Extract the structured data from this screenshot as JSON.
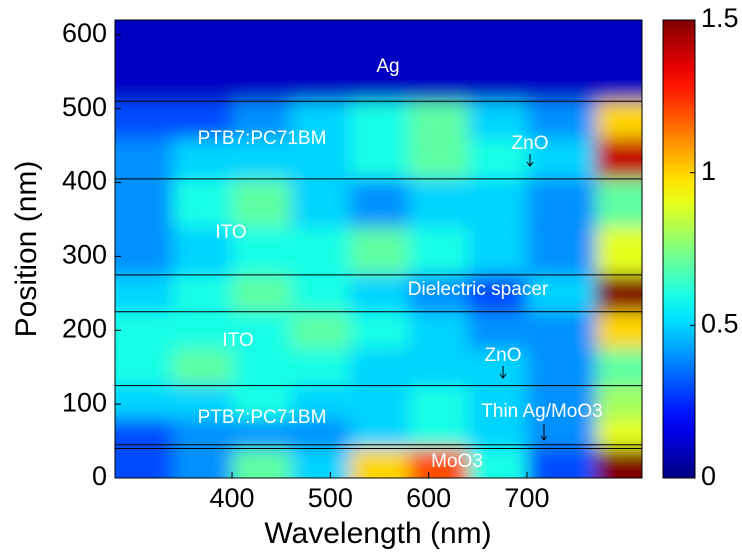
{
  "chart_data": {
    "type": "heatmap",
    "xlabel": "Wavelength (nm)",
    "ylabel": "Position (nm)",
    "x": [
      281,
      340,
      400,
      460,
      520,
      580,
      640,
      700,
      770,
      817
    ],
    "y": [
      0,
      40,
      80,
      125,
      175,
      225,
      275,
      340,
      405,
      460,
      510,
      620
    ],
    "z": [
      [
        0.3,
        0.4,
        0.7,
        0.5,
        1.0,
        1.2,
        0.6,
        0.3,
        1.5
      ],
      [
        0.3,
        0.4,
        0.4,
        0.4,
        0.5,
        0.6,
        0.5,
        0.4,
        0.9
      ],
      [
        0.5,
        0.5,
        0.6,
        0.5,
        0.5,
        0.6,
        0.5,
        0.4,
        0.8
      ],
      [
        0.6,
        0.7,
        0.6,
        0.6,
        0.5,
        0.5,
        0.5,
        0.4,
        0.7
      ],
      [
        0.6,
        0.6,
        0.6,
        0.7,
        0.6,
        0.5,
        0.4,
        0.4,
        1.0
      ],
      [
        0.5,
        0.6,
        0.7,
        0.6,
        0.5,
        0.4,
        0.3,
        0.5,
        1.5
      ],
      [
        0.4,
        0.5,
        0.6,
        0.6,
        0.7,
        0.6,
        0.5,
        0.4,
        0.9
      ],
      [
        0.4,
        0.6,
        0.7,
        0.5,
        0.4,
        0.5,
        0.5,
        0.4,
        0.7
      ],
      [
        0.4,
        0.5,
        0.5,
        0.5,
        0.6,
        0.7,
        0.6,
        0.5,
        1.4
      ],
      [
        0.3,
        0.3,
        0.4,
        0.5,
        0.6,
        0.7,
        0.5,
        0.4,
        1.0
      ],
      [
        0.1,
        0.1,
        0.1,
        0.1,
        0.1,
        0.1,
        0.1,
        0.1,
        0.1
      ]
    ],
    "xlim": [
      281,
      817
    ],
    "xticks": [
      400,
      500,
      600,
      700
    ],
    "ylim": [
      0,
      620
    ],
    "yticks": [
      0,
      100,
      200,
      300,
      400,
      500,
      600
    ],
    "clim": [
      0,
      1.5
    ],
    "cticks": [
      0,
      0.5,
      1,
      1.5
    ],
    "colormap": "jet",
    "boundaries": [
      510,
      405,
      275,
      225,
      125,
      45,
      40
    ],
    "annotations": [
      "Ag",
      "PTB7:PC71BM",
      "ZnO",
      "ITO",
      "Dielectric spacer",
      "ITO",
      "ZnO",
      "PTB7:PC71BM",
      "Thin Ag/MoO3",
      "MoO3"
    ]
  }
}
